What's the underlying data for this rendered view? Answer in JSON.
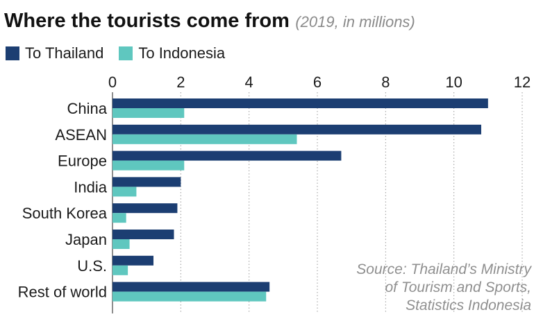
{
  "title": "Where the tourists come from",
  "subtitle": "(2019, in millions)",
  "source_lines": [
    "Source: Thailand’s Ministry",
    "of Tourism and Sports,",
    "Statistics Indonesia"
  ],
  "colors": {
    "thailand": "#1c3e72",
    "indonesia": "#5fc7bf",
    "grid": "#9a9a9a",
    "baseline": "#444444"
  },
  "chart_data": {
    "type": "bar",
    "orientation": "horizontal",
    "categories": [
      "China",
      "ASEAN",
      "Europe",
      "India",
      "South Korea",
      "Japan",
      "U.S.",
      "Rest of world"
    ],
    "series": [
      {
        "name": "To Thailand",
        "values": [
          11.0,
          10.8,
          6.7,
          2.0,
          1.9,
          1.8,
          1.2,
          4.6
        ]
      },
      {
        "name": "To Indonesia",
        "values": [
          2.1,
          5.4,
          2.1,
          0.7,
          0.4,
          0.5,
          0.45,
          4.5
        ]
      }
    ],
    "xlim": [
      0,
      12
    ],
    "xticks": [
      0,
      2,
      4,
      6,
      8,
      10,
      12
    ],
    "grid": true,
    "legend_position": "top-left"
  }
}
